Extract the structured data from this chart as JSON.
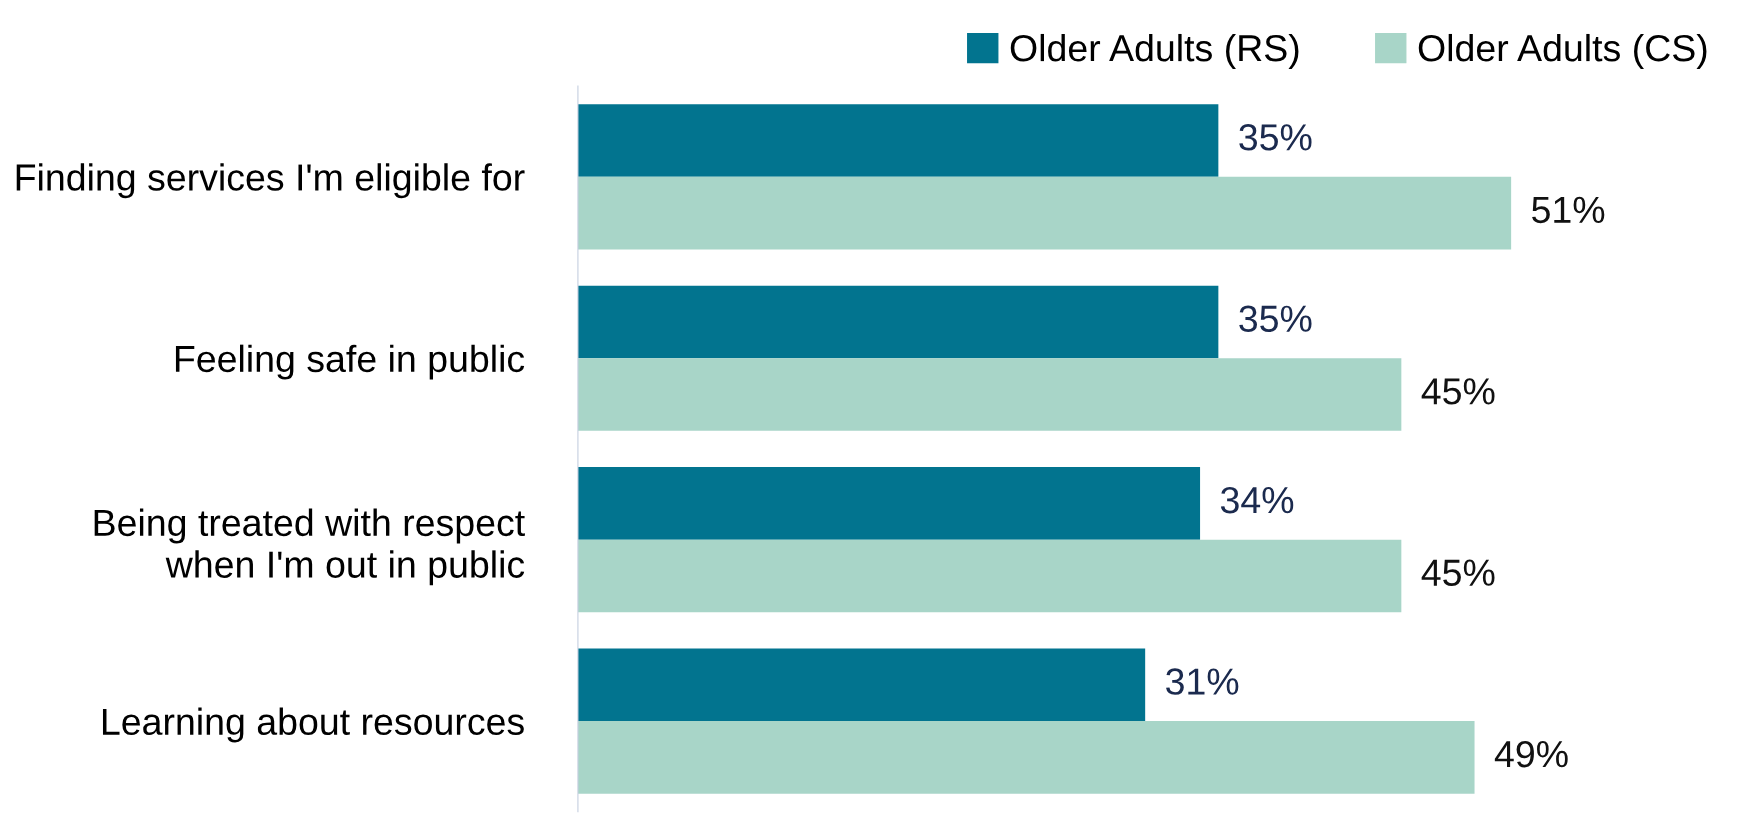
{
  "chart_data": {
    "type": "bar",
    "orientation": "horizontal",
    "data_labels": true,
    "legend": "top right",
    "categories": [
      "Finding services I'm eligible for",
      "Feeling safe in public",
      "Being treated with respect\nwhen I'm out in public",
      "Learning about resources"
    ],
    "series": [
      {
        "name": "Older Adults (RS)",
        "color": "#02748f",
        "values": [
          35,
          35,
          34,
          31
        ],
        "value_labels": [
          "35%",
          "35%",
          "34%",
          "31%"
        ]
      },
      {
        "name": "Older Adults (CS)",
        "color": "#a8d5c8",
        "values": [
          51,
          45,
          45,
          49
        ],
        "value_labels": [
          "51%",
          "45%",
          "45%",
          "49%"
        ]
      }
    ]
  }
}
